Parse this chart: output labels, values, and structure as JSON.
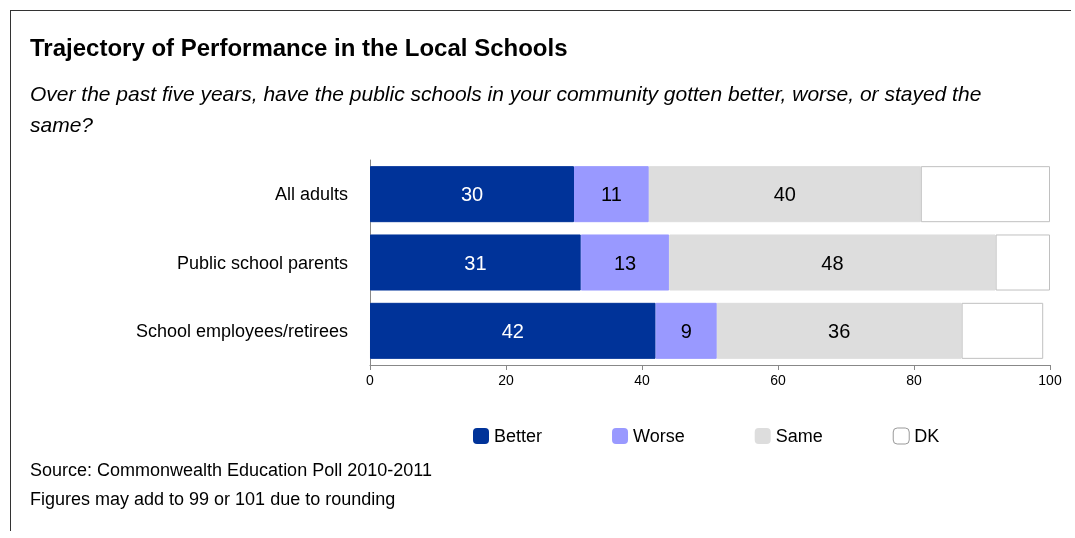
{
  "chart_data": {
    "type": "bar",
    "orientation": "horizontal",
    "stacked": true,
    "title": "Trajectory of Performance in the Local Schools",
    "subtitle": "Over the past five years, have the public schools in your community gotten better, worse, or stayed the same?",
    "categories": [
      "All adults",
      "Public school parents",
      "School employees/retirees"
    ],
    "series": [
      {
        "name": "Better",
        "color": "#003399",
        "values": [
          30,
          31,
          42
        ],
        "value_labels": [
          "30",
          "31",
          "42"
        ]
      },
      {
        "name": "Worse",
        "color": "#9999ff",
        "values": [
          11,
          13,
          9
        ],
        "value_labels": [
          "11",
          "13",
          "9"
        ]
      },
      {
        "name": "Same",
        "color": "#dddddd",
        "values": [
          40,
          48,
          36
        ],
        "value_labels": [
          "40",
          "48",
          "36"
        ]
      },
      {
        "name": "DK",
        "color": "#ffffff",
        "values": [
          19,
          8,
          12
        ],
        "value_labels": [
          null,
          null,
          null
        ]
      }
    ],
    "xlim": [
      0,
      100
    ],
    "xticks": [
      0,
      20,
      40,
      60,
      80,
      100
    ],
    "grid": false,
    "legend": "bottom",
    "annotations": [
      "Source: Commonwealth Education Poll 2010-2011",
      "Figures may add to 99 or 101 due to rounding"
    ]
  }
}
